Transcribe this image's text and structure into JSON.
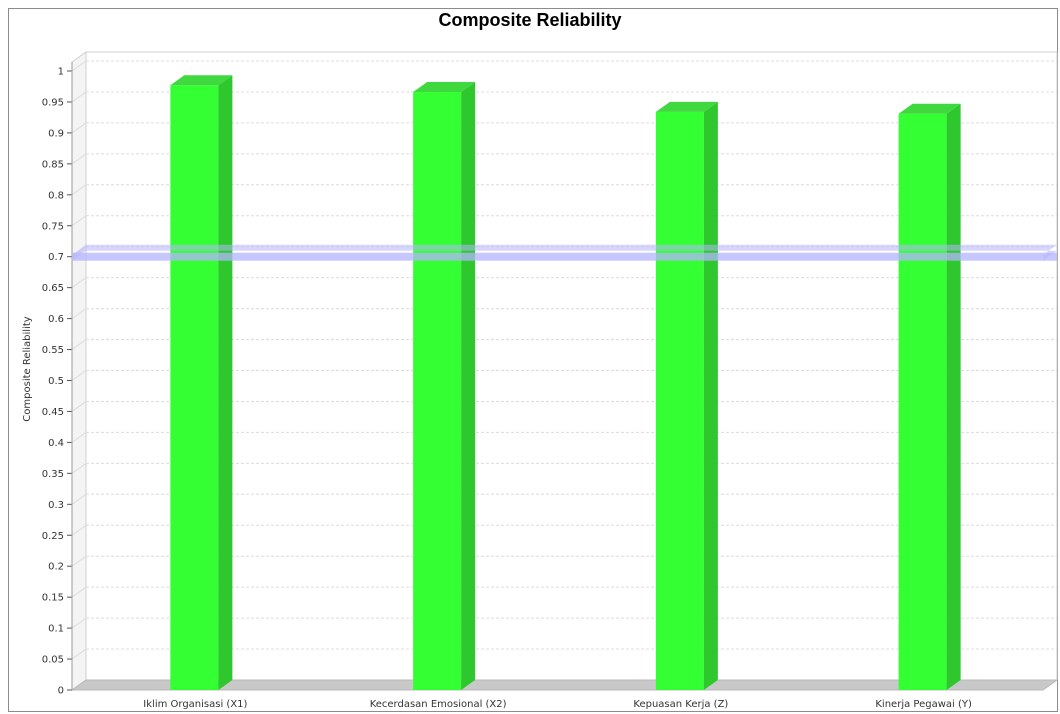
{
  "chart_data": {
    "type": "bar",
    "title": "Composite Reliability",
    "ylabel": "Composite Reliability",
    "xlabel": "",
    "categories": [
      "Iklim Organisasi (X1)",
      "Kecerdasan Emosional (X2)",
      "Kepuasan Kerja (Z)",
      "Kinerja Pegawai (Y)"
    ],
    "values": [
      0.977,
      0.966,
      0.934,
      0.931
    ],
    "ylim": [
      0,
      1
    ],
    "yticks": [
      "0",
      "0.05",
      "0.1",
      "0.15",
      "0.2",
      "0.25",
      "0.3",
      "0.35",
      "0.4",
      "0.45",
      "0.5",
      "0.55",
      "0.6",
      "0.65",
      "0.7",
      "0.75",
      "0.8",
      "0.85",
      "0.9",
      "0.95",
      "1"
    ],
    "threshold": 0.7,
    "grid": true,
    "legend": "none",
    "colors": {
      "bar_front": "#33ff33",
      "bar_side": "#2ec82e",
      "bar_top": "#3fd83f",
      "threshold": "#b4b4ff",
      "grid": "#dcdcdc",
      "floor": "#c8c8c8"
    }
  }
}
